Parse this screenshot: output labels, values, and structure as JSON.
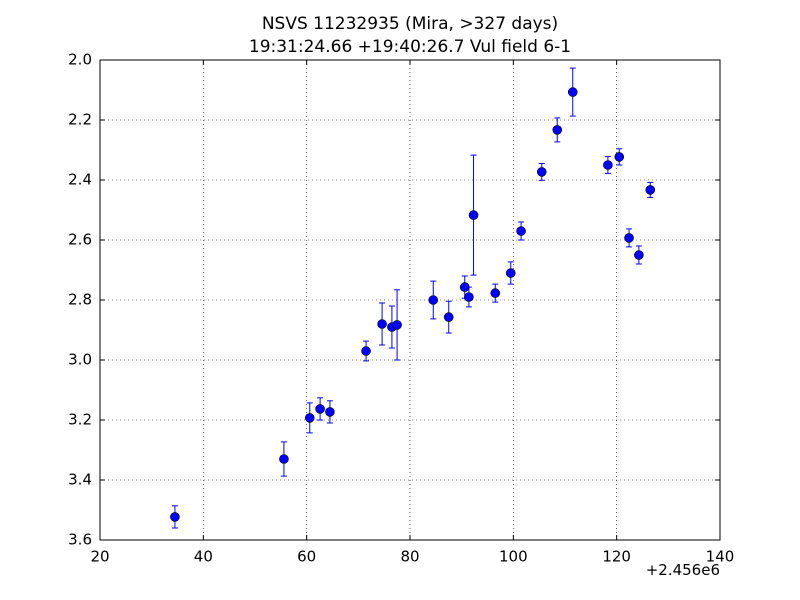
{
  "chart_data": {
    "type": "errorbar",
    "title": "NSVS 11232935 (Mira, >327 days)",
    "subtitle": "19:31:24.66 +19:40:26.7 Vul field 6-1",
    "x_offset_label": "+2.456e6",
    "x": [
      34.5,
      55.6,
      60.6,
      62.6,
      64.5,
      71.5,
      74.6,
      76.5,
      77.5,
      84.5,
      87.5,
      90.6,
      91.4,
      92.3,
      96.5,
      99.5,
      101.5,
      105.5,
      108.5,
      111.5,
      118.3,
      120.5,
      122.4,
      124.3,
      126.5
    ],
    "values": [
      3.523,
      3.33,
      3.193,
      3.163,
      3.173,
      2.97,
      2.88,
      2.89,
      2.883,
      2.8,
      2.857,
      2.757,
      2.79,
      2.517,
      2.777,
      2.71,
      2.57,
      2.373,
      2.233,
      2.107,
      2.35,
      2.323,
      2.593,
      2.65,
      2.433
    ],
    "errors": [
      0.037,
      0.057,
      0.05,
      0.037,
      0.037,
      0.033,
      0.07,
      0.07,
      0.117,
      0.063,
      0.053,
      0.037,
      0.033,
      0.2,
      0.03,
      0.037,
      0.03,
      0.028,
      0.04,
      0.08,
      0.028,
      0.027,
      0.03,
      0.03,
      0.025
    ],
    "color": "#0000ff",
    "xlim": [
      20,
      140
    ],
    "xticks": [
      20,
      40,
      60,
      80,
      100,
      120,
      140
    ],
    "ylim": [
      3.6,
      2.0
    ],
    "yticks": [
      {
        "value": 2.0,
        "label": "2.0"
      },
      2.2,
      2.4,
      2.6,
      2.8,
      {
        "value": 3.0,
        "label": "3.0"
      },
      3.2,
      3.4,
      3.6
    ],
    "grid": true
  }
}
